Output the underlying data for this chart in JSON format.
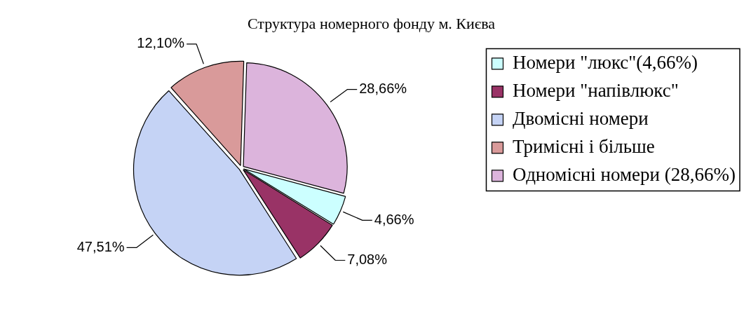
{
  "chart_data": {
    "type": "pie",
    "title": "Структура номерного фонду м. Києва",
    "categories": [
      "Номери \"люкс\"(4,66%)",
      "Номери \"напівлюкс\"",
      "Двомісні номери",
      "Тримісні і більше",
      "Одномісні номери (28,66%)"
    ],
    "values": [
      4.66,
      7.08,
      47.51,
      12.1,
      28.66
    ],
    "colors": [
      "#ccffff",
      "#993366",
      "#c5d3f5",
      "#d99a9a",
      "#dcb4dc"
    ],
    "value_labels": [
      "4,66%",
      "7,08%",
      "47,51%",
      "12,10%",
      "28,66%"
    ],
    "legend": "right"
  }
}
